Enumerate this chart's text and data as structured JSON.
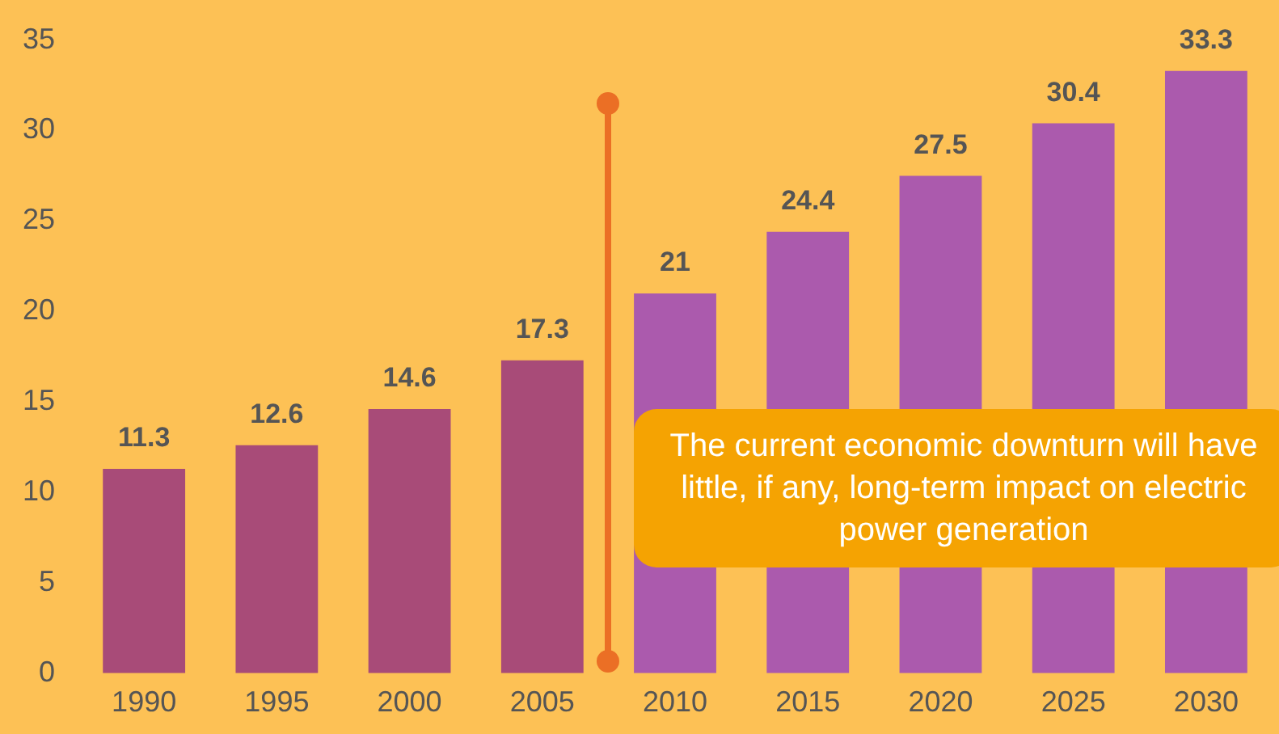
{
  "chart_data": {
    "type": "bar",
    "categories": [
      "1990",
      "1995",
      "2000",
      "2005",
      "2010",
      "2015",
      "2020",
      "2025",
      "2030"
    ],
    "values": [
      11.3,
      12.6,
      14.6,
      17.3,
      21,
      24.4,
      27.5,
      30.4,
      33.3
    ],
    "colors": [
      "#a84b78",
      "#a84b78",
      "#a84b78",
      "#a84b78",
      "#ab5aad",
      "#ab5aad",
      "#ab5aad",
      "#ab5aad",
      "#ab5aad"
    ],
    "ylim": [
      0,
      35
    ],
    "yticks": [
      0,
      5,
      10,
      15,
      20,
      25,
      30,
      35
    ],
    "grid": false,
    "legend": false,
    "data_labels": true,
    "annotations": [
      "The current economic downturn will have little, if any, long-term impact on electric power generation"
    ]
  }
}
